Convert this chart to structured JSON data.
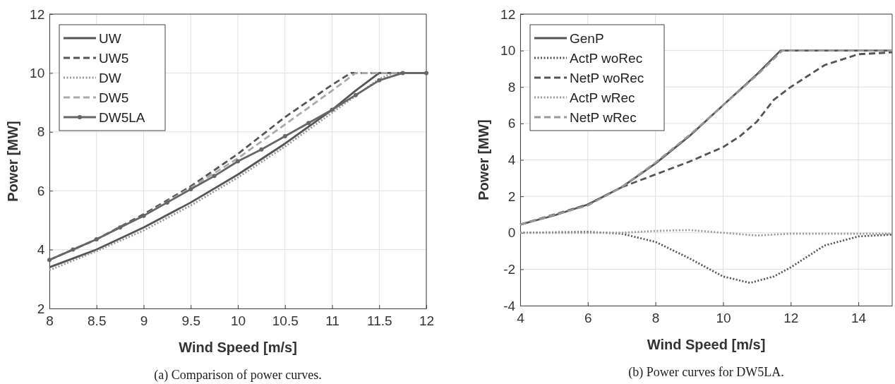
{
  "chart_data": [
    {
      "type": "line",
      "xlabel": "Wind Speed [m/s]",
      "ylabel": "Power [MW]",
      "annotations": [
        "(a) Comparison of power curves."
      ],
      "xlim": [
        8,
        12
      ],
      "ylim": [
        2,
        12
      ],
      "xticks": [
        8,
        8.5,
        9,
        9.5,
        10,
        10.5,
        11,
        11.5,
        12
      ],
      "yticks": [
        2,
        4,
        6,
        8,
        10,
        12
      ],
      "grid": true,
      "legend": "top left",
      "series": [
        {
          "name": "UW",
          "color": "#555555",
          "line_style": "solid",
          "x": [
            8,
            8.5,
            9,
            9.5,
            10,
            10.5,
            11,
            11.25,
            11.5,
            12
          ],
          "values": [
            3.4,
            4.0,
            4.75,
            5.6,
            6.55,
            7.6,
            8.75,
            9.4,
            10,
            10
          ]
        },
        {
          "name": "UW5",
          "color": "#555555",
          "line_style": "dashed",
          "x": [
            8,
            8.5,
            9,
            9.5,
            10,
            10.5,
            11,
            11.2,
            12
          ],
          "values": [
            3.65,
            4.35,
            5.2,
            6.15,
            7.25,
            8.5,
            9.6,
            10,
            10
          ]
        },
        {
          "name": "DW",
          "color": "#999999",
          "line_style": "dotted",
          "x": [
            8,
            8.5,
            9,
            9.5,
            10,
            10.5,
            11,
            11.5,
            11.65,
            12
          ],
          "values": [
            3.3,
            3.95,
            4.65,
            5.5,
            6.45,
            7.5,
            8.65,
            9.8,
            10,
            10
          ]
        },
        {
          "name": "DW5",
          "color": "#aaaaaa",
          "line_style": "dashed",
          "x": [
            8,
            8.5,
            9,
            9.5,
            10,
            10.5,
            11,
            11.25,
            12
          ],
          "values": [
            3.65,
            4.35,
            5.15,
            6.1,
            7.1,
            8.25,
            9.4,
            10,
            10
          ]
        },
        {
          "name": "DW5LA",
          "color": "#666666",
          "line_style": "solid",
          "marker": "circle",
          "x": [
            8,
            8.25,
            8.5,
            8.75,
            9,
            9.25,
            9.5,
            9.75,
            10,
            10.25,
            10.5,
            10.75,
            11,
            11.25,
            11.5,
            11.75,
            12
          ],
          "values": [
            3.65,
            4.0,
            4.35,
            4.75,
            5.15,
            5.6,
            6.05,
            6.5,
            7.0,
            7.4,
            7.85,
            8.3,
            8.75,
            9.25,
            9.75,
            10,
            10
          ]
        }
      ]
    },
    {
      "type": "line",
      "xlabel": "Wind Speed [m/s]",
      "ylabel": "Power [MW]",
      "annotations": [
        "(b) Power curves for DW5LA."
      ],
      "xlim": [
        4,
        15
      ],
      "ylim": [
        -4,
        12
      ],
      "xticks": [
        4,
        6,
        8,
        10,
        12,
        14
      ],
      "yticks": [
        -4,
        -2,
        0,
        2,
        4,
        6,
        8,
        10,
        12
      ],
      "grid": true,
      "legend": "top left",
      "series": [
        {
          "name": "GenP",
          "color": "#555555",
          "line_style": "solid",
          "x": [
            4,
            5,
            6,
            7,
            8,
            9,
            10,
            11,
            11.7,
            15
          ],
          "values": [
            0.45,
            0.95,
            1.55,
            2.5,
            3.8,
            5.3,
            7.0,
            8.7,
            10,
            10
          ]
        },
        {
          "name": "ActP woRec",
          "color": "#555555",
          "line_style": "dotted",
          "x": [
            4,
            6,
            7,
            8,
            9,
            10,
            10.8,
            11.5,
            12,
            13,
            14,
            15
          ],
          "values": [
            0,
            0.05,
            -0.05,
            -0.5,
            -1.4,
            -2.4,
            -2.75,
            -2.4,
            -1.9,
            -0.7,
            -0.2,
            -0.1
          ]
        },
        {
          "name": "NetP woRec",
          "color": "#555555",
          "line_style": "dashed",
          "x": [
            4,
            6,
            7,
            8,
            9,
            10,
            10.5,
            11,
            11.5,
            12,
            13,
            14,
            15
          ],
          "values": [
            0.45,
            1.55,
            2.5,
            3.2,
            3.9,
            4.7,
            5.3,
            6.1,
            7.3,
            8.0,
            9.2,
            9.8,
            9.9
          ]
        },
        {
          "name": "ActP wRec",
          "color": "#999999",
          "line_style": "dotted",
          "x": [
            4,
            7,
            8,
            9,
            10,
            11,
            12,
            13,
            15
          ],
          "values": [
            0,
            0,
            0.1,
            0.15,
            0,
            -0.15,
            -0.05,
            -0.05,
            -0.05
          ]
        },
        {
          "name": "NetP wRec",
          "color": "#999999",
          "line_style": "dashed",
          "x": [
            4,
            6,
            7,
            8,
            9,
            10,
            11,
            11.75,
            15
          ],
          "values": [
            0.45,
            1.5,
            2.5,
            3.85,
            5.35,
            7.0,
            8.65,
            10,
            10
          ]
        }
      ]
    }
  ]
}
